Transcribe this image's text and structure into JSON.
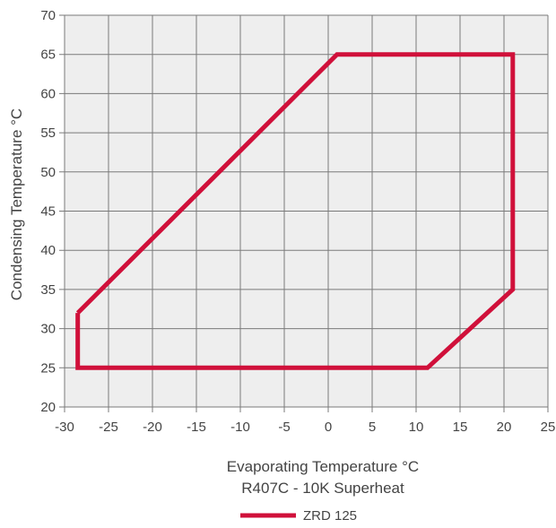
{
  "chart_data": {
    "type": "line",
    "title": "",
    "xlabel": "Evaporating Temperature °C",
    "xlabel_sub": "R407C - 10K Superheat",
    "ylabel": "Condensing Temperature °C",
    "xlim": [
      -30,
      25
    ],
    "ylim": [
      20,
      70
    ],
    "xticks": [
      -30,
      -25,
      -20,
      -15,
      -10,
      -5,
      0,
      5,
      10,
      15,
      20,
      25
    ],
    "yticks": [
      20,
      25,
      30,
      35,
      40,
      45,
      50,
      55,
      60,
      65,
      70
    ],
    "grid": true,
    "plot_background": "#eeeeee",
    "legend_position": "bottom-center",
    "series": [
      {
        "name": "ZRD 125",
        "color": "#d0103a",
        "closed": true,
        "x": [
          -28.5,
          -28.5,
          11.3,
          21.0,
          21.0,
          1.0,
          -28.5
        ],
        "y": [
          32,
          25,
          25,
          35,
          65,
          65,
          32
        ]
      }
    ]
  }
}
